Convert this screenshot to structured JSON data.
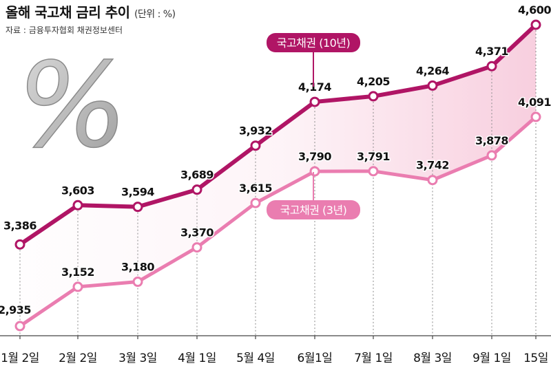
{
  "header": {
    "title": "올해 국고채 금리 추이",
    "unit": "(단위 : %)",
    "source": "자료 : 금융투자협회 채권정보센터"
  },
  "decor": {
    "percent_symbol": "%"
  },
  "colors": {
    "series_10y": "#b01565",
    "series_3y": "#ea7db0",
    "area_fill": "#f2a7c4",
    "axis": "#444444",
    "dotted": "#888888"
  },
  "chart_data": {
    "type": "line",
    "title": "올해 국고채 금리 추이",
    "unit": "%",
    "categories": [
      "1월 2일",
      "2월 2일",
      "3월 3일",
      "4월 1일",
      "5월 4일",
      "6월1일",
      "7월 1일",
      "8월 3일",
      "9월 1일",
      "15일"
    ],
    "series": [
      {
        "name": "국고채권 (10년)",
        "values": [
          3.386,
          3.603,
          3.594,
          3.689,
          3.932,
          4.174,
          4.205,
          4.264,
          4.371,
          4.6
        ],
        "labels": [
          "3,386",
          "3,603",
          "3,594",
          "3,689",
          "3,932",
          "4,174",
          "4,205",
          "4,264",
          "4,371",
          "4,600"
        ],
        "color": "#b01565"
      },
      {
        "name": "국고채권 (3년)",
        "values": [
          2.935,
          3.152,
          3.18,
          3.37,
          3.615,
          3.79,
          3.791,
          3.742,
          3.878,
          4.091
        ],
        "labels": [
          "2,935",
          "3,152",
          "3,180",
          "3,370",
          "3,615",
          "3,790",
          "3,791",
          "3,742",
          "3,878",
          "4,091"
        ],
        "color": "#ea7db0"
      }
    ],
    "grid": false,
    "legend": "callouts"
  }
}
